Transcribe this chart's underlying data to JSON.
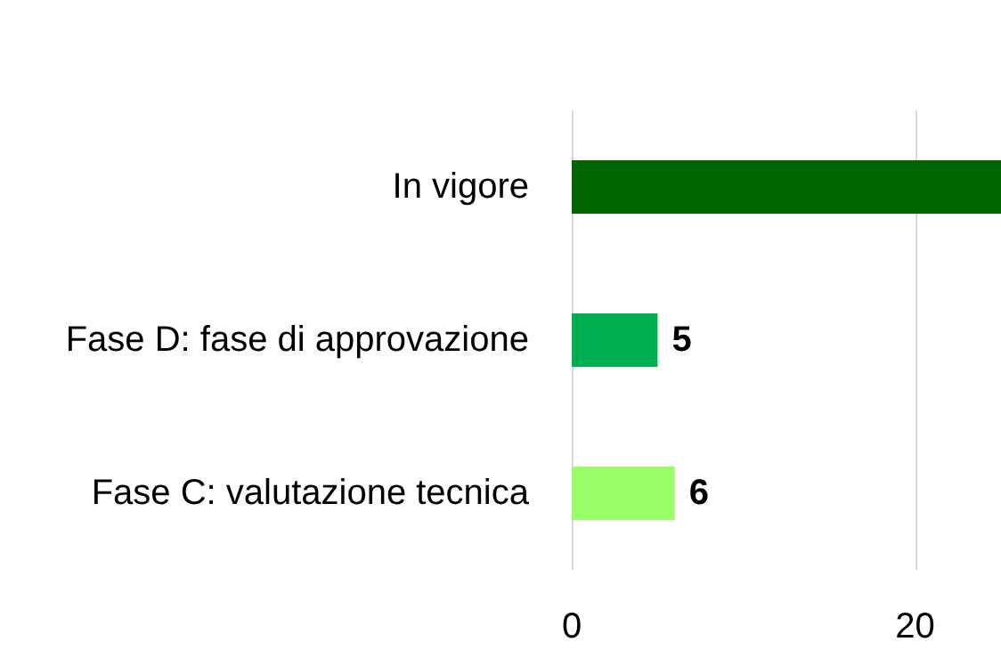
{
  "chart_data": {
    "type": "bar",
    "orientation": "horizontal",
    "categories": [
      "In vigore",
      "Fase D: fase di approvazione",
      "Fase C: valutazione tecnica"
    ],
    "values": [
      25,
      5,
      6
    ],
    "colors": [
      "#006400",
      "#00b050",
      "#99ff66"
    ],
    "value_labels": [
      null,
      "5",
      "6"
    ],
    "xlim": [
      0,
      25
    ],
    "xticks": [
      0,
      20
    ],
    "grid": "x"
  }
}
